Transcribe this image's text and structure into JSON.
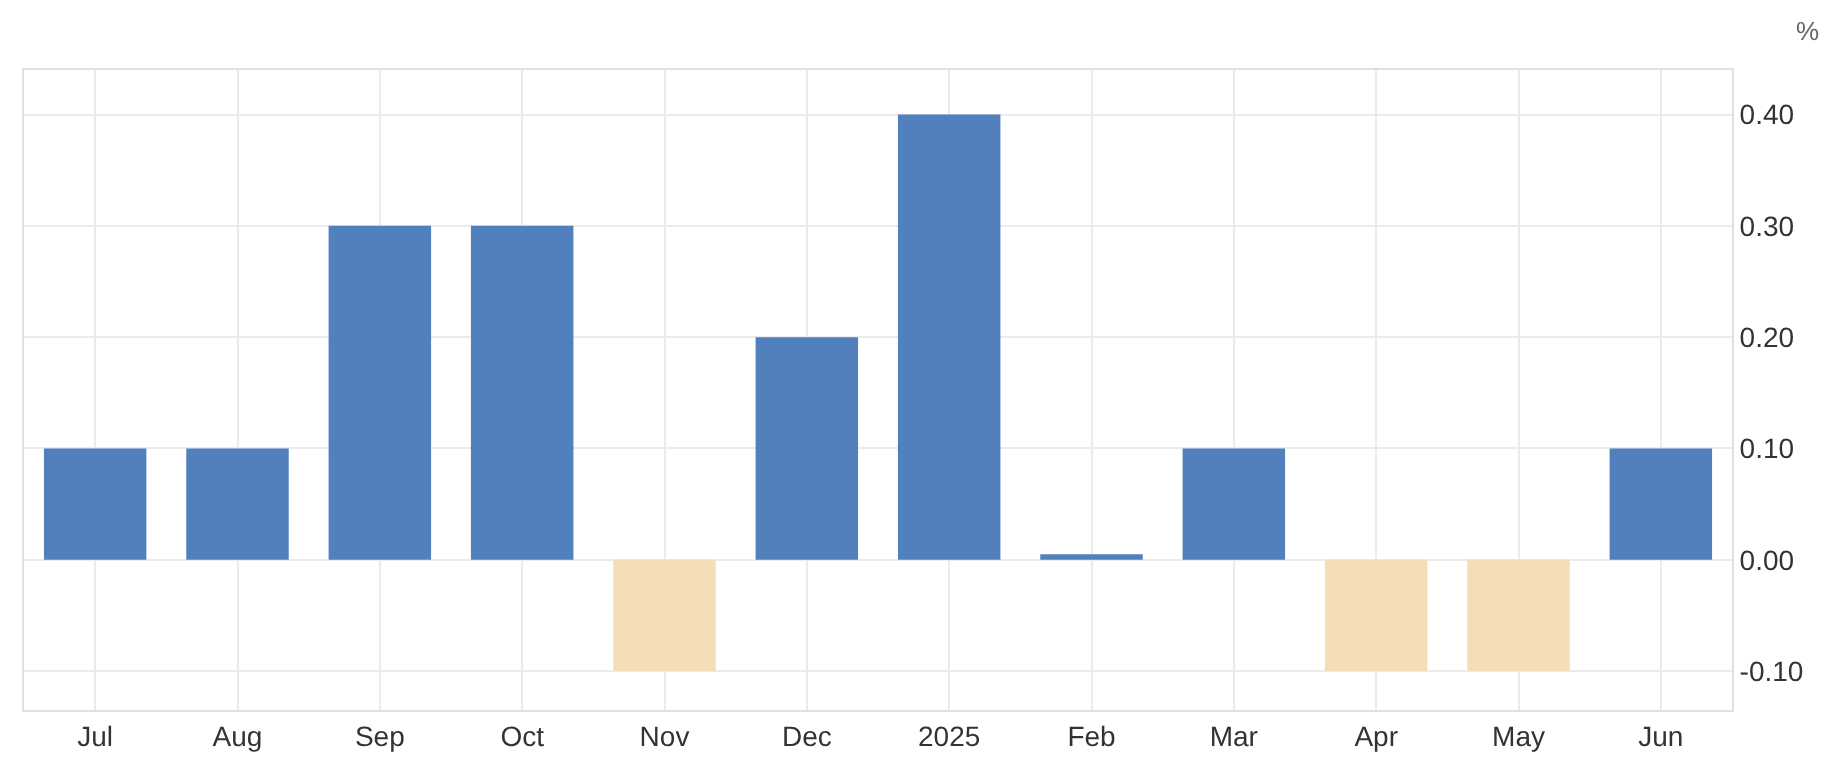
{
  "chart_data": {
    "type": "bar",
    "ylabel": "%",
    "categories": [
      "Jul",
      "Aug",
      "Sep",
      "Oct",
      "Nov",
      "Dec",
      "2025",
      "Feb",
      "Mar",
      "Apr",
      "May",
      "Jun"
    ],
    "values": [
      0.1,
      0.1,
      0.3,
      0.3,
      -0.1,
      0.2,
      0.4,
      0.005,
      0.1,
      -0.1,
      -0.1,
      0.1
    ],
    "colors": [
      "#5180bc",
      "#5180bc",
      "#5180bc",
      "#5180bc",
      "#f3deb5",
      "#5180bc",
      "#5180bc",
      "#5180bc",
      "#5180bc",
      "#f3deb5",
      "#f3deb5",
      "#5180bc"
    ],
    "ylim": [
      -0.135,
      0.44
    ],
    "yticks": [
      {
        "value": -0.1,
        "label": "-0.10"
      },
      {
        "value": 0,
        "label": "0.00"
      },
      {
        "value": 0.1,
        "label": "0.10"
      },
      {
        "value": 0.2,
        "label": "0.20"
      },
      {
        "value": 0.3,
        "label": "0.30"
      },
      {
        "value": 0.4,
        "label": "0.40"
      }
    ],
    "grid": true
  }
}
